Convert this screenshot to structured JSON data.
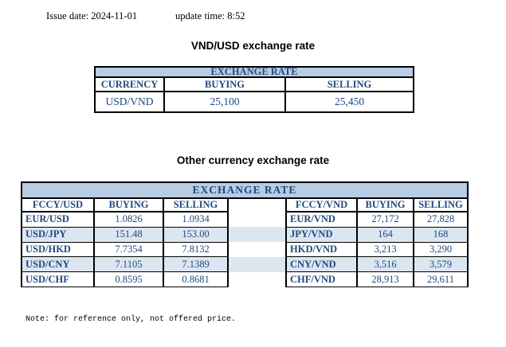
{
  "meta": {
    "issue_date_line": "Issue date: 2024-11-01",
    "update_time_line": "update time: 8:52"
  },
  "usd_table": {
    "title": "VND/USD exchange rate",
    "banner": "EXCHANGE RATE",
    "columns": [
      "CURRENCY",
      "BUYING",
      "SELLING"
    ],
    "rows": [
      [
        "USD/VND",
        "25,100",
        "25,450"
      ]
    ]
  },
  "other_table": {
    "title": "Other currency exchange rate",
    "banner": "EXCHANGE  RATE",
    "left": {
      "columns": [
        "FCCY/USD",
        "BUYING",
        "SELLING"
      ],
      "rows": [
        [
          "EUR/USD",
          "1.0826",
          "1.0934"
        ],
        [
          "USD/JPY",
          "151.48",
          "153.00"
        ],
        [
          "USD/HKD",
          "7.7354",
          "7.8132"
        ],
        [
          "USD/CNY",
          "7.1105",
          "7.1389"
        ],
        [
          "USD/CHF",
          "0.8595",
          "0.8681"
        ]
      ]
    },
    "right": {
      "columns": [
        "FCCY/VND",
        "BUYING",
        "SELLING"
      ],
      "rows": [
        [
          "EUR/VND",
          "27,172",
          "27,828"
        ],
        [
          "JPY/VND",
          "164",
          "168"
        ],
        [
          "HKD/VND",
          "3,213",
          "3,290"
        ],
        [
          "CNY/VND",
          "3,516",
          "3,579"
        ],
        [
          "CHF/VND",
          "28,913",
          "29,611"
        ]
      ]
    }
  },
  "note": "Note: for reference only, not offered price.",
  "colors": {
    "banner_bg": "#B8CCE4",
    "stripe_bg": "#DCE6F1",
    "table_text": "#1F497D",
    "border": "#000000"
  }
}
